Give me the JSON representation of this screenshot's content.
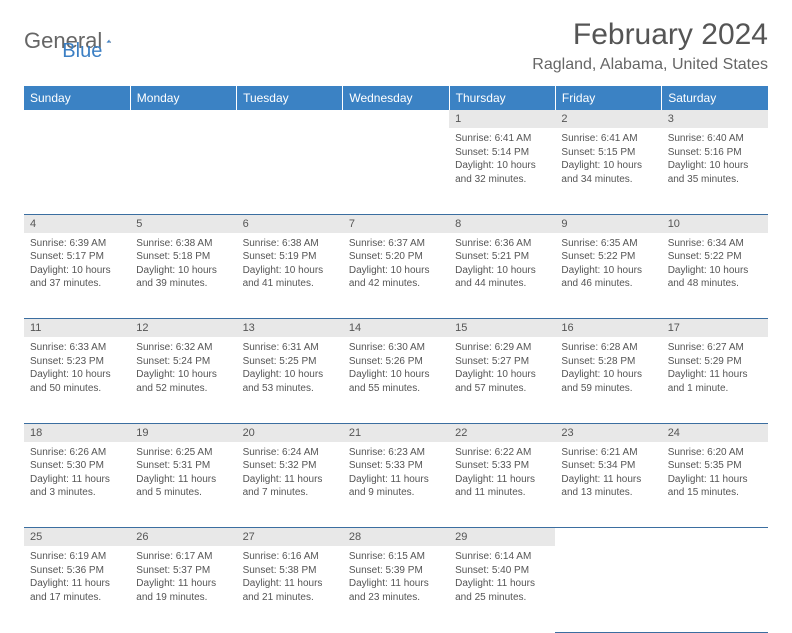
{
  "logo": {
    "part1": "General",
    "part2": "Blue"
  },
  "title": "February 2024",
  "location": "Ragland, Alabama, United States",
  "header_bg": "#3b82c4",
  "day_names": [
    "Sunday",
    "Monday",
    "Tuesday",
    "Wednesday",
    "Thursday",
    "Friday",
    "Saturday"
  ],
  "weeks": [
    {
      "nums": [
        "",
        "",
        "",
        "",
        "1",
        "2",
        "3"
      ],
      "cells": [
        null,
        null,
        null,
        null,
        {
          "sunrise": "Sunrise: 6:41 AM",
          "sunset": "Sunset: 5:14 PM",
          "day1": "Daylight: 10 hours",
          "day2": "and 32 minutes."
        },
        {
          "sunrise": "Sunrise: 6:41 AM",
          "sunset": "Sunset: 5:15 PM",
          "day1": "Daylight: 10 hours",
          "day2": "and 34 minutes."
        },
        {
          "sunrise": "Sunrise: 6:40 AM",
          "sunset": "Sunset: 5:16 PM",
          "day1": "Daylight: 10 hours",
          "day2": "and 35 minutes."
        }
      ]
    },
    {
      "nums": [
        "4",
        "5",
        "6",
        "7",
        "8",
        "9",
        "10"
      ],
      "cells": [
        {
          "sunrise": "Sunrise: 6:39 AM",
          "sunset": "Sunset: 5:17 PM",
          "day1": "Daylight: 10 hours",
          "day2": "and 37 minutes."
        },
        {
          "sunrise": "Sunrise: 6:38 AM",
          "sunset": "Sunset: 5:18 PM",
          "day1": "Daylight: 10 hours",
          "day2": "and 39 minutes."
        },
        {
          "sunrise": "Sunrise: 6:38 AM",
          "sunset": "Sunset: 5:19 PM",
          "day1": "Daylight: 10 hours",
          "day2": "and 41 minutes."
        },
        {
          "sunrise": "Sunrise: 6:37 AM",
          "sunset": "Sunset: 5:20 PM",
          "day1": "Daylight: 10 hours",
          "day2": "and 42 minutes."
        },
        {
          "sunrise": "Sunrise: 6:36 AM",
          "sunset": "Sunset: 5:21 PM",
          "day1": "Daylight: 10 hours",
          "day2": "and 44 minutes."
        },
        {
          "sunrise": "Sunrise: 6:35 AM",
          "sunset": "Sunset: 5:22 PM",
          "day1": "Daylight: 10 hours",
          "day2": "and 46 minutes."
        },
        {
          "sunrise": "Sunrise: 6:34 AM",
          "sunset": "Sunset: 5:22 PM",
          "day1": "Daylight: 10 hours",
          "day2": "and 48 minutes."
        }
      ]
    },
    {
      "nums": [
        "11",
        "12",
        "13",
        "14",
        "15",
        "16",
        "17"
      ],
      "cells": [
        {
          "sunrise": "Sunrise: 6:33 AM",
          "sunset": "Sunset: 5:23 PM",
          "day1": "Daylight: 10 hours",
          "day2": "and 50 minutes."
        },
        {
          "sunrise": "Sunrise: 6:32 AM",
          "sunset": "Sunset: 5:24 PM",
          "day1": "Daylight: 10 hours",
          "day2": "and 52 minutes."
        },
        {
          "sunrise": "Sunrise: 6:31 AM",
          "sunset": "Sunset: 5:25 PM",
          "day1": "Daylight: 10 hours",
          "day2": "and 53 minutes."
        },
        {
          "sunrise": "Sunrise: 6:30 AM",
          "sunset": "Sunset: 5:26 PM",
          "day1": "Daylight: 10 hours",
          "day2": "and 55 minutes."
        },
        {
          "sunrise": "Sunrise: 6:29 AM",
          "sunset": "Sunset: 5:27 PM",
          "day1": "Daylight: 10 hours",
          "day2": "and 57 minutes."
        },
        {
          "sunrise": "Sunrise: 6:28 AM",
          "sunset": "Sunset: 5:28 PM",
          "day1": "Daylight: 10 hours",
          "day2": "and 59 minutes."
        },
        {
          "sunrise": "Sunrise: 6:27 AM",
          "sunset": "Sunset: 5:29 PM",
          "day1": "Daylight: 11 hours",
          "day2": "and 1 minute."
        }
      ]
    },
    {
      "nums": [
        "18",
        "19",
        "20",
        "21",
        "22",
        "23",
        "24"
      ],
      "cells": [
        {
          "sunrise": "Sunrise: 6:26 AM",
          "sunset": "Sunset: 5:30 PM",
          "day1": "Daylight: 11 hours",
          "day2": "and 3 minutes."
        },
        {
          "sunrise": "Sunrise: 6:25 AM",
          "sunset": "Sunset: 5:31 PM",
          "day1": "Daylight: 11 hours",
          "day2": "and 5 minutes."
        },
        {
          "sunrise": "Sunrise: 6:24 AM",
          "sunset": "Sunset: 5:32 PM",
          "day1": "Daylight: 11 hours",
          "day2": "and 7 minutes."
        },
        {
          "sunrise": "Sunrise: 6:23 AM",
          "sunset": "Sunset: 5:33 PM",
          "day1": "Daylight: 11 hours",
          "day2": "and 9 minutes."
        },
        {
          "sunrise": "Sunrise: 6:22 AM",
          "sunset": "Sunset: 5:33 PM",
          "day1": "Daylight: 11 hours",
          "day2": "and 11 minutes."
        },
        {
          "sunrise": "Sunrise: 6:21 AM",
          "sunset": "Sunset: 5:34 PM",
          "day1": "Daylight: 11 hours",
          "day2": "and 13 minutes."
        },
        {
          "sunrise": "Sunrise: 6:20 AM",
          "sunset": "Sunset: 5:35 PM",
          "day1": "Daylight: 11 hours",
          "day2": "and 15 minutes."
        }
      ]
    },
    {
      "nums": [
        "25",
        "26",
        "27",
        "28",
        "29",
        "",
        ""
      ],
      "cells": [
        {
          "sunrise": "Sunrise: 6:19 AM",
          "sunset": "Sunset: 5:36 PM",
          "day1": "Daylight: 11 hours",
          "day2": "and 17 minutes."
        },
        {
          "sunrise": "Sunrise: 6:17 AM",
          "sunset": "Sunset: 5:37 PM",
          "day1": "Daylight: 11 hours",
          "day2": "and 19 minutes."
        },
        {
          "sunrise": "Sunrise: 6:16 AM",
          "sunset": "Sunset: 5:38 PM",
          "day1": "Daylight: 11 hours",
          "day2": "and 21 minutes."
        },
        {
          "sunrise": "Sunrise: 6:15 AM",
          "sunset": "Sunset: 5:39 PM",
          "day1": "Daylight: 11 hours",
          "day2": "and 23 minutes."
        },
        {
          "sunrise": "Sunrise: 6:14 AM",
          "sunset": "Sunset: 5:40 PM",
          "day1": "Daylight: 11 hours",
          "day2": "and 25 minutes."
        },
        null,
        null
      ]
    }
  ]
}
